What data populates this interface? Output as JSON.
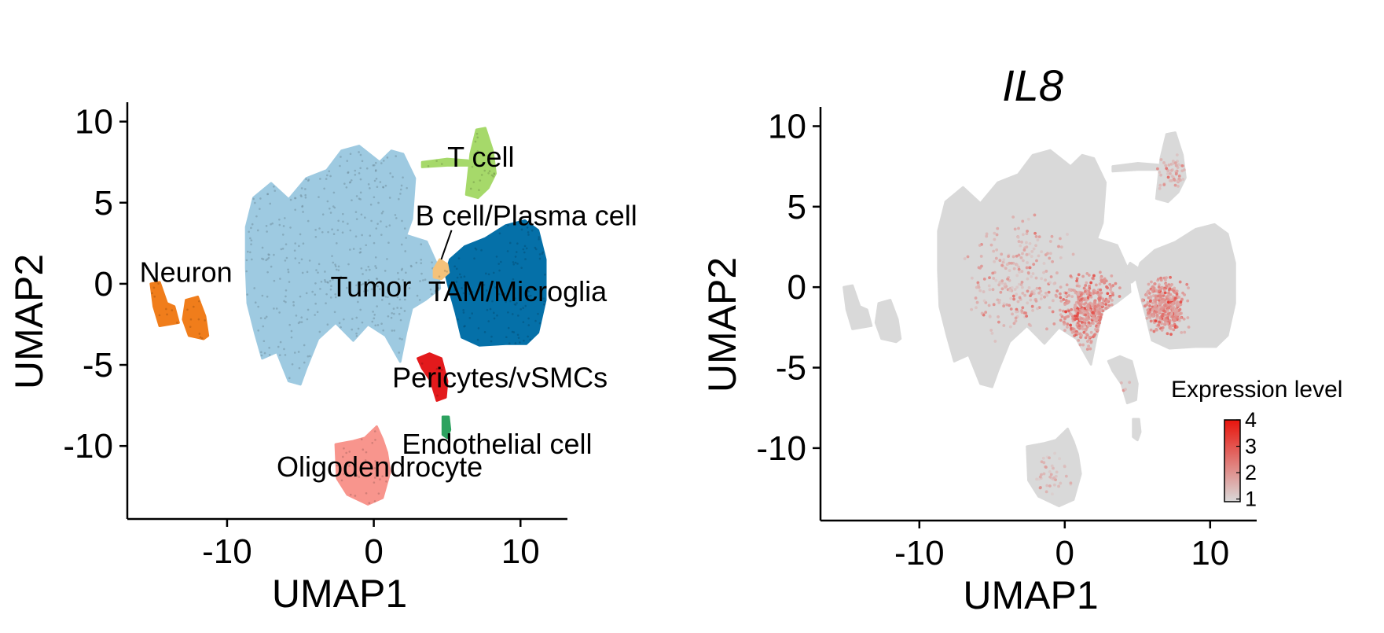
{
  "chart_data": [
    {
      "type": "scatter",
      "title": "",
      "xlabel": "UMAP1",
      "ylabel": "UMAP2",
      "xlim": [
        -16.8,
        13.2
      ],
      "ylim": [
        -14.5,
        11.0
      ],
      "xticks": [
        {
          "value": -10,
          "label": "-10"
        },
        {
          "value": 0,
          "label": "0"
        },
        {
          "value": 10,
          "label": "10"
        }
      ],
      "yticks": [
        {
          "value": 10,
          "label": "10"
        },
        {
          "value": 5,
          "label": "5"
        },
        {
          "value": 0,
          "label": "0"
        },
        {
          "value": -5,
          "label": "-5"
        },
        {
          "value": -10,
          "label": "-10"
        }
      ],
      "grid": false,
      "legend": "none",
      "clusters": [
        {
          "name": "Tumor",
          "color": "#9ecae1",
          "label_at": [
            -0.2,
            -0.2
          ],
          "polygon": [
            [
              -8.2,
              5.3
            ],
            [
              -7.0,
              6.2
            ],
            [
              -5.8,
              5.2
            ],
            [
              -4.6,
              6.5
            ],
            [
              -3.2,
              7.0
            ],
            [
              -2.2,
              8.2
            ],
            [
              -1.0,
              8.5
            ],
            [
              0.4,
              7.5
            ],
            [
              1.2,
              8.2
            ],
            [
              2.0,
              8.0
            ],
            [
              2.8,
              6.5
            ],
            [
              2.6,
              4.0
            ],
            [
              2.2,
              3.0
            ],
            [
              3.6,
              2.6
            ],
            [
              4.4,
              1.0
            ],
            [
              4.5,
              -0.3
            ],
            [
              3.5,
              -1.0
            ],
            [
              2.6,
              -1.5
            ],
            [
              2.2,
              -3.0
            ],
            [
              1.8,
              -4.8
            ],
            [
              0.8,
              -3.2
            ],
            [
              -0.4,
              -2.5
            ],
            [
              -1.4,
              -3.5
            ],
            [
              -2.6,
              -2.4
            ],
            [
              -3.8,
              -3.4
            ],
            [
              -4.6,
              -5.2
            ],
            [
              -5.0,
              -6.2
            ],
            [
              -5.8,
              -6.0
            ],
            [
              -6.6,
              -4.2
            ],
            [
              -7.6,
              -4.6
            ],
            [
              -8.1,
              -3.0
            ],
            [
              -8.6,
              -1.2
            ],
            [
              -8.7,
              1.0
            ],
            [
              -8.7,
              3.5
            ]
          ]
        },
        {
          "name": "TAM/Microglia",
          "color": "#0570a8",
          "label_at": [
            9.8,
            -0.5
          ],
          "polygon": [
            [
              5.2,
              1.5
            ],
            [
              6.2,
              2.3
            ],
            [
              7.6,
              2.8
            ],
            [
              9.0,
              3.6
            ],
            [
              10.3,
              3.9
            ],
            [
              11.2,
              3.3
            ],
            [
              11.7,
              1.5
            ],
            [
              11.7,
              -1.0
            ],
            [
              11.2,
              -3.0
            ],
            [
              10.4,
              -3.7
            ],
            [
              9.0,
              -3.7
            ],
            [
              7.2,
              -3.8
            ],
            [
              6.0,
              -3.3
            ],
            [
              5.6,
              -1.8
            ],
            [
              5.2,
              -0.5
            ],
            [
              4.9,
              0.6
            ]
          ]
        },
        {
          "name": "T cell",
          "color": "#a6d96a",
          "label_at": [
            7.3,
            7.8
          ],
          "polygon": [
            [
              6.3,
              5.5
            ],
            [
              6.6,
              8.0
            ],
            [
              7.0,
              9.5
            ],
            [
              7.6,
              9.6
            ],
            [
              8.1,
              8.2
            ],
            [
              8.3,
              6.8
            ],
            [
              7.8,
              5.9
            ],
            [
              7.1,
              5.3
            ]
          ]
        },
        {
          "name": "T cell",
          "color": "#a6d96a",
          "label_at": null,
          "polygon": [
            [
              3.3,
              7.5
            ],
            [
              5.0,
              7.7
            ],
            [
              6.4,
              7.6
            ],
            [
              6.4,
              7.3
            ],
            [
              5.0,
              7.3
            ],
            [
              3.3,
              7.2
            ]
          ]
        },
        {
          "name": "B cell/Plasma cell",
          "color": "#f4c27a",
          "label_at": [
            10.4,
            4.2
          ],
          "polygon": [
            [
              4.1,
              0.9
            ],
            [
              4.5,
              1.5
            ],
            [
              5.0,
              1.2
            ],
            [
              5.1,
              0.7
            ],
            [
              4.6,
              0.3
            ],
            [
              4.1,
              0.4
            ]
          ]
        },
        {
          "name": "Neuron",
          "color": "#f07d1b",
          "label_at": [
            -12.8,
            0.7
          ],
          "polygon": [
            [
              -15.2,
              0.0
            ],
            [
              -14.6,
              0.1
            ],
            [
              -14.1,
              -1.2
            ],
            [
              -13.6,
              -1.4
            ],
            [
              -13.3,
              -2.4
            ],
            [
              -14.6,
              -2.6
            ],
            [
              -15.0,
              -1.4
            ]
          ]
        },
        {
          "name": "Neuron",
          "color": "#f07d1b",
          "label_at": null,
          "polygon": [
            [
              -12.8,
              -1.0
            ],
            [
              -12.0,
              -0.8
            ],
            [
              -11.5,
              -2.0
            ],
            [
              -11.3,
              -3.2
            ],
            [
              -11.6,
              -3.4
            ],
            [
              -12.6,
              -3.2
            ],
            [
              -13.0,
              -2.2
            ]
          ]
        },
        {
          "name": "Pericytes/vSMCs",
          "color": "#e31a1c",
          "label_at": [
            8.6,
            -5.8
          ],
          "polygon": [
            [
              3.0,
              -4.6
            ],
            [
              3.8,
              -4.3
            ],
            [
              4.6,
              -4.6
            ],
            [
              5.0,
              -6.0
            ],
            [
              4.9,
              -7.0
            ],
            [
              4.3,
              -7.2
            ],
            [
              3.9,
              -6.0
            ],
            [
              3.3,
              -5.2
            ]
          ]
        },
        {
          "name": "Endothelial cell",
          "color": "#2ca25f",
          "label_at": [
            8.4,
            -9.9
          ],
          "polygon": [
            [
              4.7,
              -8.2
            ],
            [
              5.1,
              -8.2
            ],
            [
              5.2,
              -9.0
            ],
            [
              5.0,
              -9.5
            ],
            [
              4.7,
              -9.3
            ]
          ]
        },
        {
          "name": "Oligodendrocyte",
          "color": "#f8958d",
          "label_at": [
            0.4,
            -11.3
          ],
          "polygon": [
            [
              -2.6,
              -9.9
            ],
            [
              -1.4,
              -9.7
            ],
            [
              -0.6,
              -9.5
            ],
            [
              0.2,
              -8.8
            ],
            [
              0.6,
              -9.6
            ],
            [
              0.9,
              -10.4
            ],
            [
              1.1,
              -11.6
            ],
            [
              0.6,
              -13.2
            ],
            [
              -0.4,
              -13.6
            ],
            [
              -1.8,
              -13.0
            ],
            [
              -2.5,
              -12.0
            ]
          ]
        }
      ]
    },
    {
      "type": "scatter",
      "title": "IL8",
      "xlabel": "UMAP1",
      "ylabel": "UMAP2",
      "xlim": [
        -16.8,
        13.2
      ],
      "ylim": [
        -14.5,
        11.0
      ],
      "xticks": [
        {
          "value": -10,
          "label": "-10"
        },
        {
          "value": 0,
          "label": "0"
        },
        {
          "value": 10,
          "label": "10"
        }
      ],
      "yticks": [
        {
          "value": 10,
          "label": "10"
        },
        {
          "value": 5,
          "label": "5"
        },
        {
          "value": 0,
          "label": "0"
        },
        {
          "value": -5,
          "label": "-5"
        },
        {
          "value": -10,
          "label": "-10"
        }
      ],
      "grid": false,
      "base_color": "#d9d9d9",
      "legend": {
        "title": "Expression level",
        "placement": "bottom-right",
        "low_color": "#d9d9d9",
        "high_color": "#e8140c",
        "range": [
          0.9,
          4.0
        ],
        "ticks": [
          {
            "value": 4,
            "label": "4"
          },
          {
            "value": 3,
            "label": "3"
          },
          {
            "value": 2,
            "label": "2"
          },
          {
            "value": 1,
            "label": "1"
          }
        ]
      },
      "hotspots": [
        {
          "center": [
            1.8,
            -1.5
          ],
          "radius": 3.0,
          "count": 520,
          "level": [
            1.6,
            3.8
          ]
        },
        {
          "center": [
            6.8,
            -1.2
          ],
          "radius": 2.2,
          "count": 380,
          "level": [
            1.6,
            3.8
          ]
        },
        {
          "center": [
            -3.0,
            0.5
          ],
          "radius": 5.0,
          "count": 260,
          "level": [
            1.2,
            3.0
          ]
        },
        {
          "center": [
            7.5,
            7.0
          ],
          "radius": 1.6,
          "count": 60,
          "level": [
            1.3,
            3.2
          ]
        },
        {
          "center": [
            -0.8,
            -11.5
          ],
          "radius": 1.8,
          "count": 40,
          "level": [
            1.1,
            2.4
          ]
        },
        {
          "center": [
            3.8,
            -6.5
          ],
          "radius": 1.2,
          "count": 25,
          "level": [
            1.2,
            2.6
          ]
        }
      ]
    }
  ]
}
